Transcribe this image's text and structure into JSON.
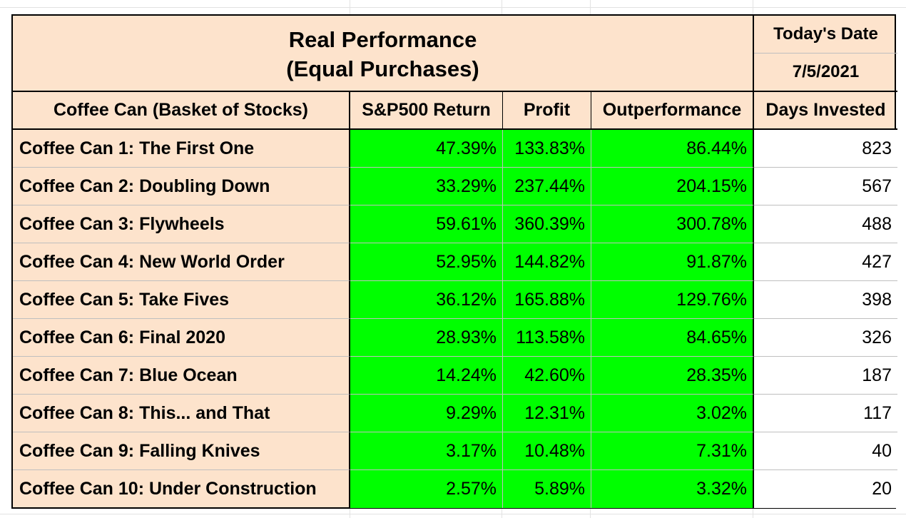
{
  "title_line1": "Real Performance",
  "title_line2": "(Equal Purchases)",
  "date_label": "Today's Date",
  "date_value": "7/5/2021",
  "headers": {
    "basket": "Coffee Can (Basket of Stocks)",
    "sp500": "S&P500 Return",
    "profit": "Profit",
    "outperformance": "Outperformance",
    "days": "Days Invested"
  },
  "rows": [
    {
      "name": "Coffee Can 1: The First One",
      "sp500": "47.39%",
      "profit": "133.83%",
      "outperformance": "86.44%",
      "days": "823"
    },
    {
      "name": "Coffee Can 2: Doubling Down",
      "sp500": "33.29%",
      "profit": "237.44%",
      "outperformance": "204.15%",
      "days": "567"
    },
    {
      "name": "Coffee Can 3: Flywheels",
      "sp500": "59.61%",
      "profit": "360.39%",
      "outperformance": "300.78%",
      "days": "488"
    },
    {
      "name": "Coffee Can 4: New World Order",
      "sp500": "52.95%",
      "profit": "144.82%",
      "outperformance": "91.87%",
      "days": "427"
    },
    {
      "name": "Coffee Can 5: Take Fives",
      "sp500": "36.12%",
      "profit": "165.88%",
      "outperformance": "129.76%",
      "days": "398"
    },
    {
      "name": "Coffee Can 6: Final 2020",
      "sp500": "28.93%",
      "profit": "113.58%",
      "outperformance": "84.65%",
      "days": "326"
    },
    {
      "name": "Coffee Can 7: Blue Ocean",
      "sp500": "14.24%",
      "profit": "42.60%",
      "outperformance": "28.35%",
      "days": "187"
    },
    {
      "name": "Coffee Can 8: This... and That",
      "sp500": "9.29%",
      "profit": "12.31%",
      "outperformance": "3.02%",
      "days": "117"
    },
    {
      "name": "Coffee Can 9: Falling Knives",
      "sp500": "3.17%",
      "profit": "10.48%",
      "outperformance": "7.31%",
      "days": "40"
    },
    {
      "name": "Coffee Can 10: Under Construction",
      "sp500": "2.57%",
      "profit": "5.89%",
      "outperformance": "3.32%",
      "days": "20"
    }
  ],
  "colors": {
    "header_bg": "#fde3cc",
    "highlight": "#00ff00",
    "days_bg": "#ffffff"
  }
}
